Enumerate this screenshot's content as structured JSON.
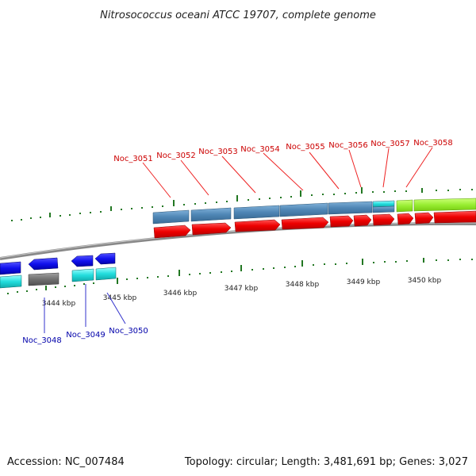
{
  "title": "Nitrosococcus oceani ATCC 19707, complete genome",
  "footer": {
    "accession": "Accession: NC_007484",
    "summary": "Topology: circular; Length: 3,481,691 bp; Genes: 3,027"
  },
  "colors": {
    "top_label": "#cc0000",
    "bottom_label": "#0000aa",
    "cds_forward": "#ee0000",
    "gene_steelblue": "#4f86b5",
    "gene_lime": "#99ee33",
    "gene_cyan": "#22dddd",
    "cds_reverse": "#1111ee",
    "gene_grey": "#707070",
    "tick": "#227722"
  },
  "ruler_labels": [
    "3444 kbp",
    "3445 kbp",
    "3446 kbp",
    "3447 kbp",
    "3448 kbp",
    "3449 kbp",
    "3450 kbp"
  ],
  "top_genes": [
    "Noc_3051",
    "Noc_3052",
    "Noc_3053",
    "Noc_3054",
    "Noc_3055",
    "Noc_3056",
    "Noc_3057",
    "Noc_3058"
  ],
  "bottom_genes": [
    "Noc_3048",
    "Noc_3049",
    "Noc_3050"
  ]
}
